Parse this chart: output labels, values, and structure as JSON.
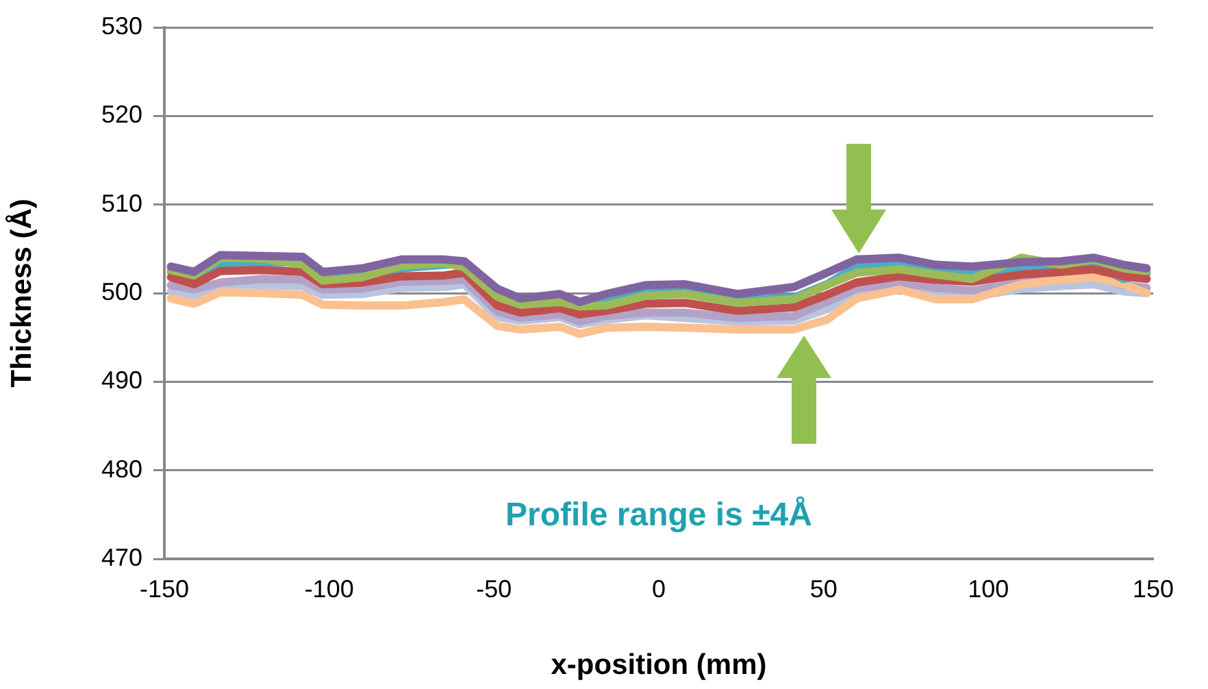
{
  "chart_data": {
    "type": "line",
    "xlabel": "x-position (mm)",
    "ylabel": "Thickness (Å)",
    "annotations": [
      "Profile range is ±4Å"
    ],
    "x": [
      -148,
      -141,
      -133,
      -120,
      -108,
      -102,
      -90,
      -78,
      -65,
      -59,
      -49,
      -42,
      -30,
      -24,
      -16,
      -4,
      8,
      24,
      41,
      51,
      60,
      73,
      84,
      95,
      110,
      122,
      132,
      141,
      148
    ],
    "series": [
      {
        "color": "#8064a2",
        "values": [
          503.0,
          502.4,
          504.3,
          504.2,
          504.1,
          502.4,
          502.8,
          503.8,
          503.8,
          503.6,
          500.5,
          499.4,
          499.9,
          499.0,
          499.9,
          500.9,
          501.0,
          499.9,
          500.7,
          502.3,
          503.8,
          504.0,
          503.2,
          503.0,
          503.5,
          503.6,
          504.0,
          503.2,
          502.8
        ]
      },
      {
        "color": "#9bbb59",
        "values": [
          502.6,
          502.0,
          504.0,
          503.9,
          503.2,
          501.4,
          501.8,
          503.1,
          503.4,
          502.9,
          499.6,
          498.7,
          499.0,
          498.5,
          498.6,
          499.7,
          499.9,
          498.9,
          499.3,
          500.9,
          502.3,
          502.7,
          502.1,
          501.6,
          504.0,
          503.2,
          503.8,
          502.8,
          502.5
        ]
      },
      {
        "color": "#c0504d",
        "values": [
          501.8,
          501.0,
          502.5,
          502.6,
          502.4,
          501.0,
          501.2,
          501.9,
          502.0,
          502.3,
          498.6,
          497.8,
          498.3,
          497.6,
          498.0,
          498.8,
          498.9,
          498.0,
          498.4,
          499.8,
          501.2,
          501.9,
          501.5,
          501.3,
          502.1,
          502.4,
          502.7,
          501.9,
          501.6
        ]
      },
      {
        "color": "#4bacc6",
        "values": [
          502.4,
          501.5,
          503.3,
          503.4,
          503.5,
          501.6,
          501.9,
          502.8,
          503.2,
          503.3,
          499.8,
          499.0,
          499.2,
          498.1,
          499.5,
          500.3,
          500.2,
          499.2,
          499.5,
          501.0,
          503.0,
          503.6,
          502.6,
          502.4,
          502.7,
          503.0,
          503.3,
          501.6,
          502.2
        ]
      },
      {
        "color": "#fac090",
        "values": [
          499.4,
          498.8,
          500.1,
          500.0,
          499.8,
          498.7,
          498.6,
          498.6,
          499.0,
          499.3,
          496.3,
          495.9,
          496.2,
          495.4,
          496.1,
          496.2,
          496.1,
          495.9,
          495.9,
          497.0,
          499.4,
          500.4,
          499.3,
          499.3,
          501.0,
          501.5,
          501.8,
          501.0,
          500.0
        ]
      },
      {
        "color": "#b3a2c7",
        "values": [
          500.9,
          500.4,
          501.2,
          501.6,
          501.5,
          500.4,
          500.5,
          501.3,
          501.4,
          501.5,
          497.9,
          497.2,
          497.6,
          496.8,
          497.4,
          497.8,
          497.8,
          497.2,
          497.4,
          499.0,
          500.5,
          501.2,
          500.6,
          500.3,
          501.2,
          501.6,
          501.9,
          500.9,
          500.6
        ]
      },
      {
        "color": "#b9c4e0",
        "values": [
          500.2,
          499.6,
          501.0,
          500.9,
          500.8,
          499.8,
          499.9,
          500.6,
          500.7,
          501.0,
          497.3,
          496.9,
          497.3,
          496.5,
          497.0,
          497.5,
          497.2,
          496.8,
          496.9,
          498.2,
          500.1,
          500.9,
          500.0,
          499.6,
          500.5,
          500.8,
          501.0,
          500.2,
          500.0
        ]
      }
    ],
    "xlim": [
      -150,
      150
    ],
    "xticks": [
      -150,
      -100,
      -50,
      0,
      50,
      100,
      150
    ],
    "ylim": [
      470,
      530
    ],
    "yticks": [
      470,
      480,
      490,
      500,
      510,
      520,
      530
    ],
    "grid": "y",
    "legend": false,
    "marker": "none",
    "line_style": "solid"
  }
}
